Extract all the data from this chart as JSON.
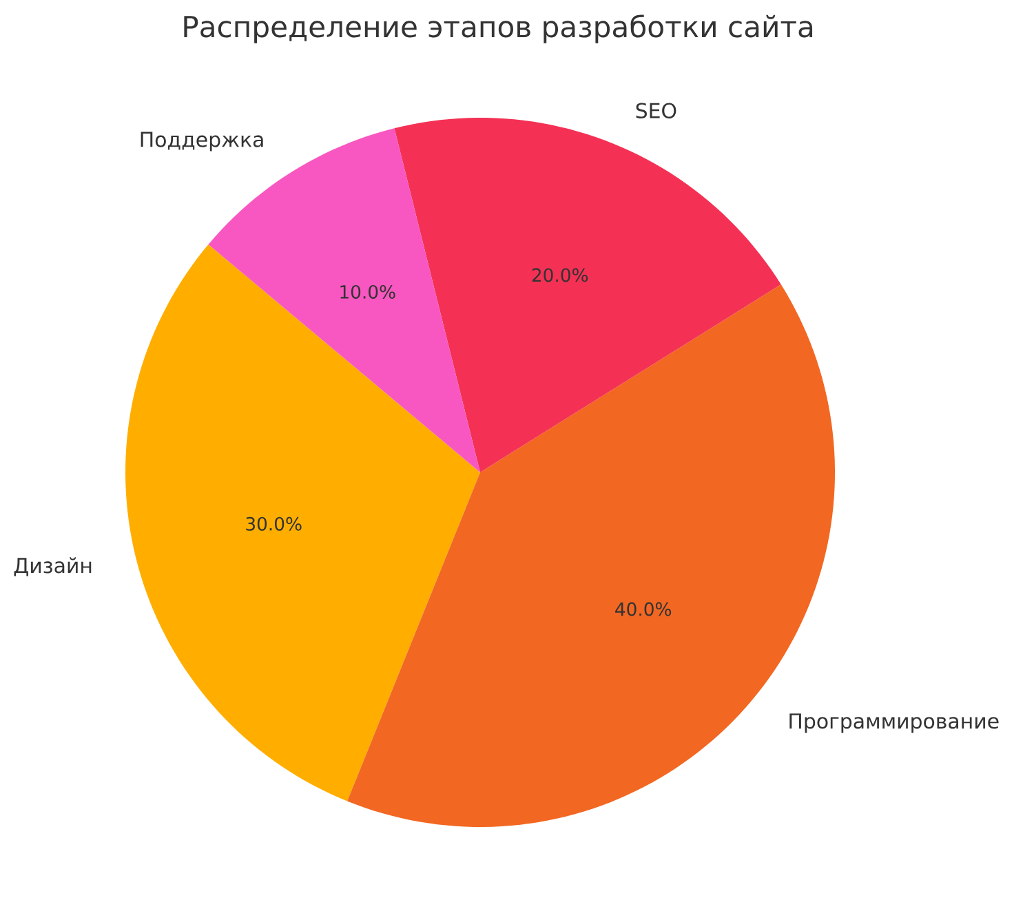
{
  "chart_data": {
    "type": "pie",
    "title": "Распределение этапов разработки сайта",
    "categories": [
      "Дизайн",
      "Программирование",
      "SEO",
      "Поддержка"
    ],
    "values": [
      30,
      40,
      20,
      10
    ],
    "colors": [
      "#ffae00",
      "#f26722",
      "#f43155",
      "#f857c1"
    ],
    "value_labels": [
      "30.0%",
      "40.0%",
      "20.0%",
      "10.0%"
    ]
  }
}
